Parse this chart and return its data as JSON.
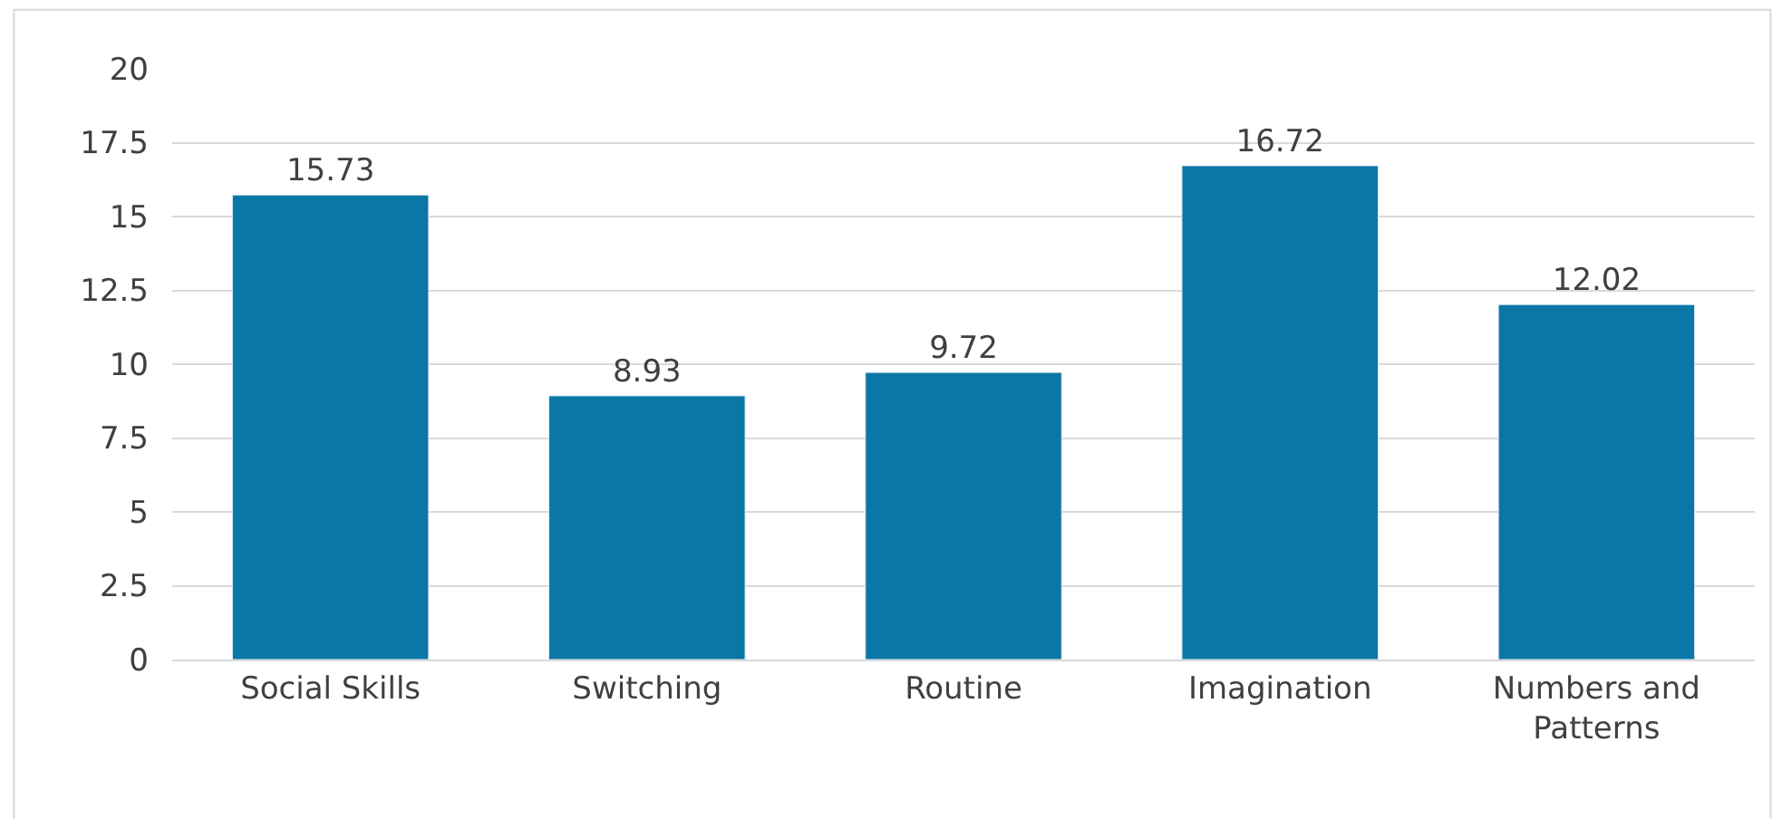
{
  "chart_data": {
    "type": "bar",
    "categories": [
      "Social Skills",
      "Switching",
      "Routine",
      "Imagination",
      "Numbers and Patterns"
    ],
    "values": [
      15.73,
      8.93,
      9.72,
      16.72,
      12.02
    ],
    "color": "#0a77a6",
    "ylim": [
      0,
      20
    ],
    "yticks": [
      0,
      2.5,
      5,
      7.5,
      10,
      12.5,
      15,
      17.5,
      20
    ],
    "grid": "y",
    "data_labels": true,
    "legend": false
  }
}
